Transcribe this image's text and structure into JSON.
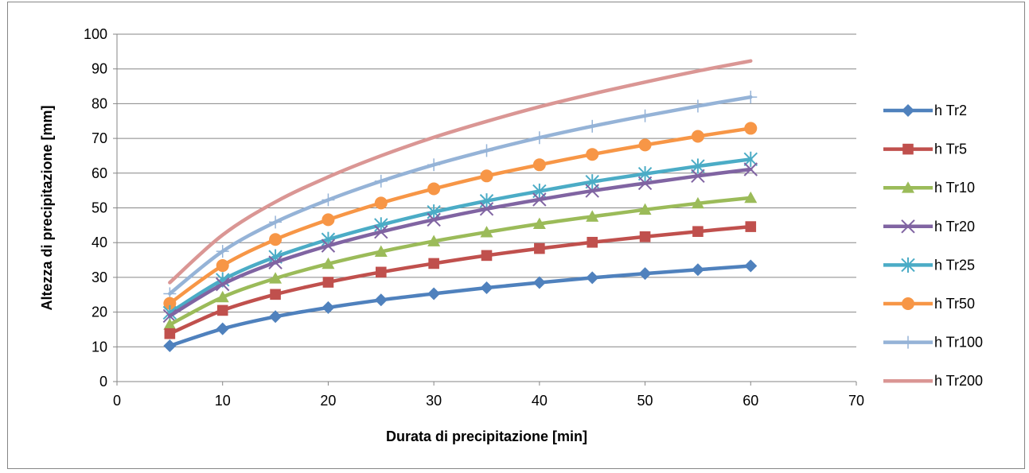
{
  "chart_data": {
    "type": "line",
    "title": "",
    "xlabel": "Durata di precipitazione [min]",
    "ylabel": "Altezza di precipitazione [mm]",
    "xlim": [
      0,
      70
    ],
    "ylim": [
      0,
      100
    ],
    "xticks": [
      0,
      10,
      20,
      30,
      40,
      50,
      60,
      70
    ],
    "yticks": [
      0,
      10,
      20,
      30,
      40,
      50,
      60,
      70,
      80,
      90,
      100
    ],
    "grid": "horizontal",
    "legend_position": "right",
    "x": [
      5,
      10,
      15,
      20,
      25,
      30,
      35,
      40,
      45,
      50,
      55,
      60
    ],
    "series": [
      {
        "name": "h Tr2",
        "color": "#4F81BD",
        "marker": "diamond",
        "values": [
          10.3,
          15.2,
          18.7,
          21.3,
          23.5,
          25.3,
          27.0,
          28.5,
          29.9,
          31.1,
          32.2,
          33.3
        ]
      },
      {
        "name": "h Tr5",
        "color": "#C0504D",
        "marker": "square",
        "values": [
          13.8,
          20.5,
          25.1,
          28.6,
          31.5,
          34.0,
          36.3,
          38.3,
          40.1,
          41.7,
          43.2,
          44.6
        ]
      },
      {
        "name": "h Tr10",
        "color": "#9BBB59",
        "marker": "triangle",
        "values": [
          16.4,
          24.3,
          29.7,
          33.9,
          37.4,
          40.4,
          43.0,
          45.4,
          47.5,
          49.5,
          51.3,
          52.9
        ]
      },
      {
        "name": "h Tr20",
        "color": "#8064A2",
        "marker": "x",
        "values": [
          18.9,
          28.0,
          34.3,
          39.1,
          43.1,
          46.6,
          49.7,
          52.4,
          54.9,
          57.1,
          59.2,
          61.1
        ]
      },
      {
        "name": "h Tr25",
        "color": "#4BACC6",
        "marker": "asterisk",
        "values": [
          19.8,
          29.3,
          35.9,
          40.9,
          45.1,
          48.8,
          52.0,
          54.8,
          57.5,
          59.8,
          62.0,
          64.0
        ]
      },
      {
        "name": "h Tr50",
        "color": "#F79646",
        "marker": "circle",
        "values": [
          22.5,
          33.4,
          40.9,
          46.6,
          51.4,
          55.5,
          59.2,
          62.4,
          65.4,
          68.1,
          70.6,
          72.9
        ]
      },
      {
        "name": "h Tr100",
        "color": "#95B3D7",
        "marker": "plus",
        "values": [
          25.3,
          37.5,
          45.9,
          52.3,
          57.7,
          62.4,
          66.5,
          70.2,
          73.5,
          76.5,
          79.3,
          81.9
        ]
      },
      {
        "name": "h Tr200",
        "color": "#DA9694",
        "marker": "none",
        "values": [
          28.5,
          42.2,
          51.7,
          58.9,
          65.0,
          70.3,
          74.9,
          79.1,
          82.8,
          86.2,
          89.4,
          92.3
        ]
      }
    ]
  }
}
